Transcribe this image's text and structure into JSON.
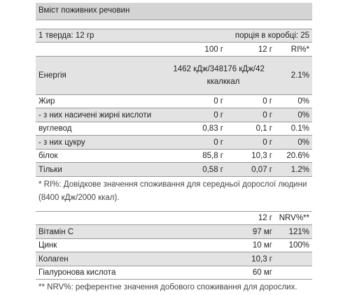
{
  "title": "Вміст поживних речовин",
  "serving": {
    "label": "1 тверда: 12 гр",
    "per_box": "порція в коробці: 25"
  },
  "headers": {
    "col1": "100 г",
    "col2": "12 г",
    "col3": "RI%*"
  },
  "nutrients": [
    {
      "name": "Енергія",
      "v100": "1462 кДж/348 ккал",
      "vserv": "176 кДж/42 ккал",
      "ri": "2.1%"
    },
    {
      "name": "Жир",
      "v100": "0 г",
      "vserv": "0 г",
      "ri": "0%"
    },
    {
      "name": "- з них насичені жирні кислоти",
      "v100": "0 г",
      "vserv": "0 г",
      "ri": "0%"
    },
    {
      "name": "вуглевод",
      "v100": "0,83 г",
      "vserv": "0,1 г",
      "ri": "0.1%"
    },
    {
      "name": "- з них цукру",
      "v100": "0 г",
      "vserv": "0 г",
      "ri": "0%"
    },
    {
      "name": "білок",
      "v100": "85,8 г",
      "vserv": "10,3 г",
      "ri": "20.6%"
    },
    {
      "name": "Тільки",
      "v100": "0,58 г",
      "vserv": "0,07 г",
      "ri": "1.2%"
    }
  ],
  "note_ri": "* RI%: Довідкове значення споживання для середньої дорослої людини (8400 кДж/2000 ккал).",
  "vitamins_headers": {
    "col2": "12 г",
    "col3": "NRV%**"
  },
  "vitamins": [
    {
      "name": "Вітамін С",
      "value": "97 мг",
      "nrv": "121%"
    },
    {
      "name": "Цинк",
      "value": "10 мг",
      "nrv": "100%"
    },
    {
      "name": "Колаген",
      "value": "10,3 г",
      "nrv": ""
    },
    {
      "name": "Гіалуронова кислота",
      "value": "60 мг",
      "nrv": ""
    }
  ],
  "note_nrv": "** NRV%: референтне значення добового споживання для дорослих."
}
